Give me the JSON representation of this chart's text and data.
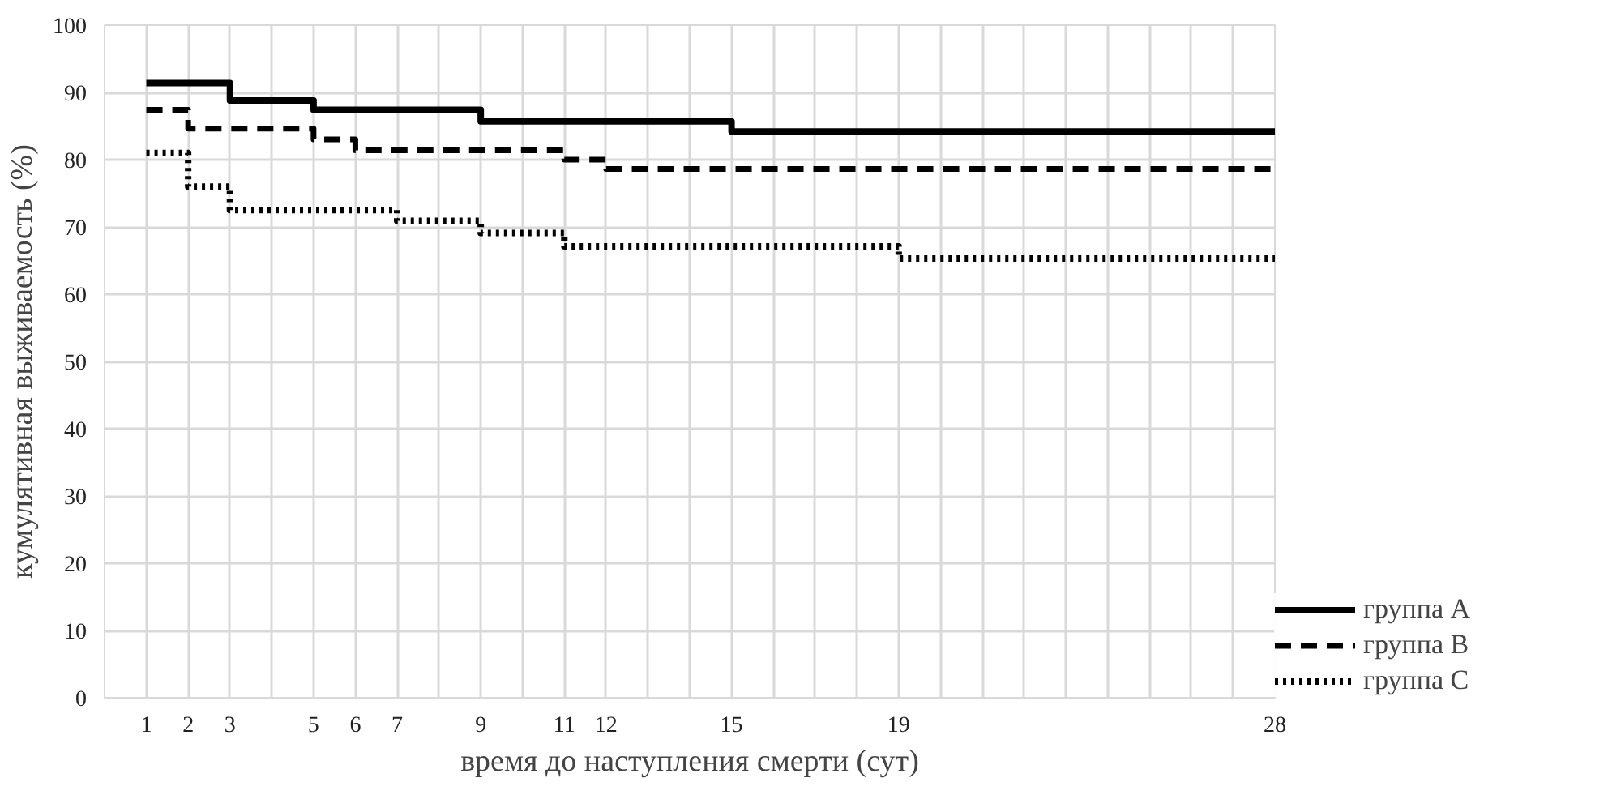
{
  "chart_data": {
    "type": "step",
    "xlabel": "время до наступления смерти (сут)",
    "ylabel": "кумулятивная выживаемость (%)",
    "xlim": [
      0,
      28
    ],
    "ylim": [
      0,
      100
    ],
    "xticks": [
      1,
      2,
      3,
      {
        "value": 4,
        "label": null
      },
      5,
      6,
      7,
      {
        "value": 8,
        "label": null
      },
      9,
      {
        "value": 10,
        "label": null
      },
      11,
      12,
      {
        "value": 13,
        "label": null
      },
      {
        "value": 14,
        "label": null
      },
      15,
      {
        "value": 16,
        "label": null
      },
      {
        "value": 17,
        "label": null
      },
      {
        "value": 18,
        "label": null
      },
      19,
      {
        "value": 20,
        "label": null
      },
      {
        "value": 21,
        "label": null
      },
      {
        "value": 22,
        "label": null
      },
      {
        "value": 23,
        "label": null
      },
      {
        "value": 24,
        "label": null
      },
      {
        "value": 25,
        "label": null
      },
      {
        "value": 26,
        "label": null
      },
      {
        "value": 27,
        "label": null
      },
      28
    ],
    "yticks": [
      0,
      10,
      20,
      30,
      40,
      50,
      60,
      70,
      80,
      90,
      100
    ],
    "grid": true,
    "legend": "right",
    "series": [
      {
        "name": "группа A",
        "color": "#000000",
        "line_style": "solid",
        "x": [
          1,
          3,
          5,
          9,
          15,
          28
        ],
        "values": [
          91.4,
          88.8,
          87.4,
          85.7,
          84.2,
          84.2
        ]
      },
      {
        "name": "группа B",
        "color": "#000000",
        "line_style": "dashed",
        "x": [
          1,
          2,
          5,
          6,
          11,
          12,
          28
        ],
        "values": [
          87.4,
          84.6,
          83.0,
          81.4,
          80.0,
          78.6,
          78.6
        ]
      },
      {
        "name": "группа C",
        "color": "#000000",
        "line_style": "dotted",
        "x": [
          1,
          2,
          3,
          7,
          9,
          11,
          19,
          28
        ],
        "values": [
          81.0,
          76.0,
          72.5,
          70.9,
          69.1,
          67.1,
          65.3,
          65.3
        ]
      }
    ]
  }
}
